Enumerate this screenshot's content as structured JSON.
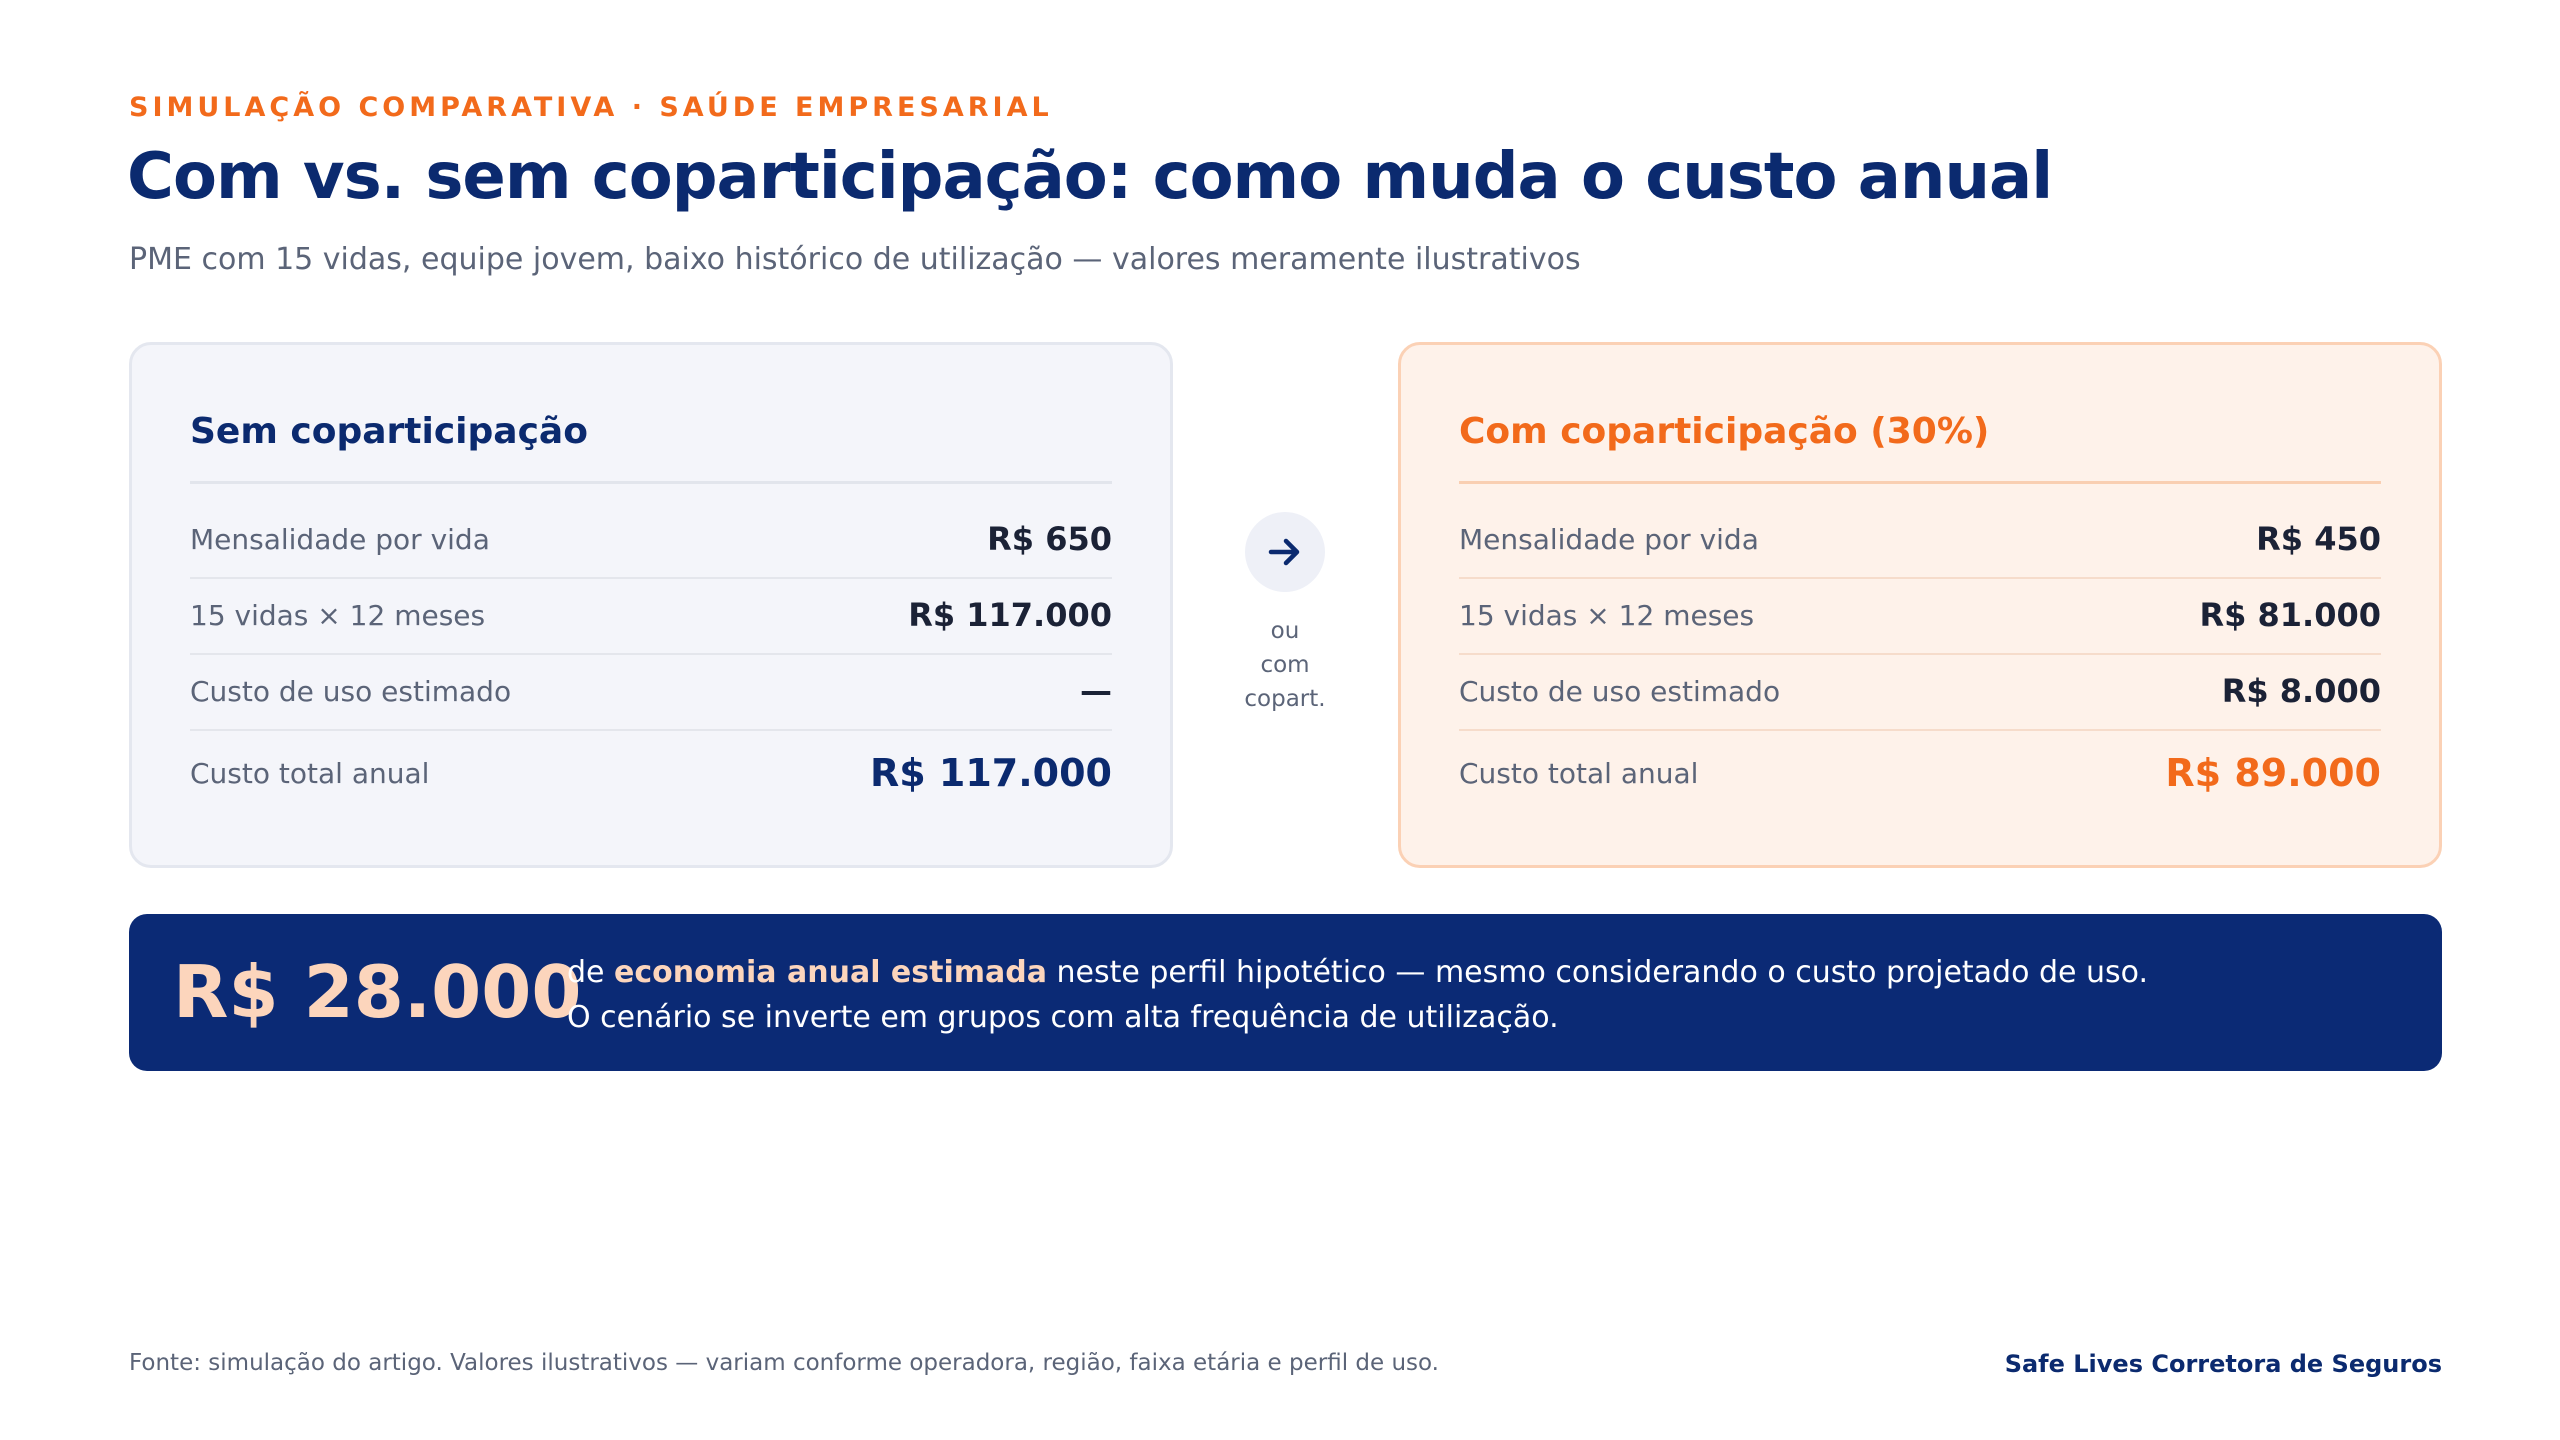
{
  "header": {
    "eyebrow": "SIMULAÇÃO COMPARATIVA · SAÚDE EMPRESARIAL",
    "title": "Com vs. sem coparticipação: como muda o custo anual",
    "subtitle": "PME com 15 vidas, equipe jovem, baixo histórico de utilização — valores meramente ilustrativos"
  },
  "cards": {
    "without": {
      "title": "Sem coparticipação",
      "rows": [
        {
          "label": "Mensalidade por vida",
          "value": "R$ 650"
        },
        {
          "label": "15 vidas × 12 meses",
          "value": "R$ 117.000"
        },
        {
          "label": "Custo de uso estimado",
          "value": "—"
        },
        {
          "label": "Custo total anual",
          "value": "R$ 117.000"
        }
      ]
    },
    "with": {
      "title": "Com coparticipação (30%)",
      "rows": [
        {
          "label": "Mensalidade por vida",
          "value": "R$ 450"
        },
        {
          "label": "15 vidas × 12 meses",
          "value": "R$ 81.000"
        },
        {
          "label": "Custo de uso estimado",
          "value": "R$ 8.000"
        },
        {
          "label": "Custo total anual",
          "value": "R$ 89.000"
        }
      ]
    }
  },
  "separator": {
    "icon": "arrow-right-icon",
    "line1": "ou",
    "line2": "com",
    "line3": "copart."
  },
  "banner": {
    "amount": "R$ 28.000",
    "pre": "de ",
    "highlight": "economia anual estimada",
    "post": " neste perfil hipotético — mesmo considerando o custo projetado de uso.",
    "line2": "O cenário se inverte em grupos com alta frequência de utilização."
  },
  "footer": {
    "source": "Fonte: simulação do artigo. Valores ilustrativos — variam conforme operadora, região, faixa etária e perfil de uso.",
    "brand": "Safe Lives Corretora de Seguros"
  },
  "colors": {
    "accent": "#f26a1b",
    "navy": "#0b2a6f",
    "banner": "#0b2a75"
  }
}
